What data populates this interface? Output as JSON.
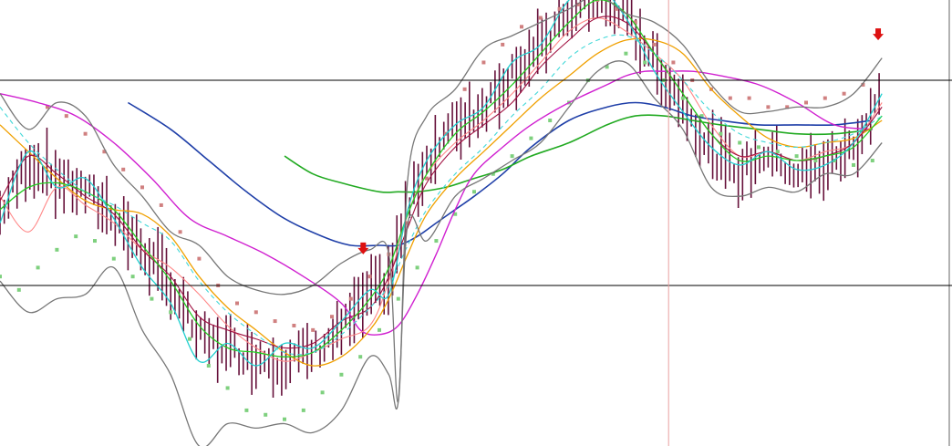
{
  "chart_data": {
    "type": "line",
    "title": "",
    "xlabel": "",
    "ylabel": "",
    "x_index_range": [
      0,
      100
    ],
    "y_range": [
      0,
      100
    ],
    "grid": false,
    "legend": "none",
    "horizontal_levels": [
      {
        "name": "upper-level",
        "y": 82,
        "color": "#000000"
      },
      {
        "name": "lower-level",
        "y": 36,
        "color": "#000000"
      }
    ],
    "vertical_markers": [
      {
        "name": "cursor-line",
        "x": 70.5,
        "color": "#e8a0a0"
      }
    ],
    "arrows": [
      {
        "name": "sell-arrow-1",
        "x": 38.3,
        "y": 44,
        "color": "#dd1111"
      },
      {
        "name": "sell-arrow-2",
        "x": 92.6,
        "y": 92,
        "color": "#dd1111"
      }
    ],
    "series": [
      {
        "color": "#1f3fa8",
        "width": 1.6,
        "x": [
          13.5,
          18,
          22,
          26,
          30,
          34,
          37,
          40,
          42,
          44,
          46,
          48,
          50,
          53,
          56,
          60,
          64,
          67,
          70,
          73,
          76,
          80,
          84,
          88,
          92
        ],
        "y": [
          77,
          71,
          64,
          57,
          51,
          47,
          45,
          45,
          45,
          47,
          50,
          53,
          56,
          61,
          67,
          73,
          76,
          77,
          76,
          74,
          73,
          72,
          72,
          72,
          73
        ]
      },
      {
        "color": "#22aa22",
        "width": 1.6,
        "x": [
          30,
          33,
          36,
          40,
          42,
          44,
          47,
          50,
          53,
          56,
          60,
          64,
          67,
          70,
          73,
          76,
          80,
          84,
          88,
          92
        ],
        "y": [
          65,
          61,
          59,
          57,
          57,
          57,
          58,
          60,
          62,
          65,
          68,
          72,
          74,
          74,
          73,
          72,
          71,
          70,
          70,
          71
        ]
      },
      {
        "color": "#d020d0",
        "width": 1.4,
        "x": [
          0,
          4,
          8,
          12,
          16,
          20,
          24,
          28,
          32,
          36,
          38,
          40,
          42,
          44,
          46,
          48,
          50,
          53,
          56,
          60,
          64,
          66,
          68,
          70,
          73,
          76,
          80,
          84,
          88,
          92
        ],
        "y": [
          79,
          77,
          74,
          68,
          60,
          51,
          47,
          43,
          38,
          32,
          26,
          25,
          27,
          34,
          43,
          53,
          61,
          67,
          72,
          77,
          81,
          83,
          84,
          84,
          84,
          83,
          81,
          77,
          72,
          71
        ]
      },
      {
        "color": "#f0a000",
        "width": 1.3,
        "x": [
          0,
          3,
          6,
          9,
          12,
          15,
          18,
          21,
          24,
          27,
          30,
          33,
          36,
          39,
          41,
          43,
          45,
          48,
          51,
          54,
          57,
          60,
          63,
          66,
          69,
          72,
          75,
          78,
          81,
          84,
          87,
          90,
          93
        ],
        "y": [
          72,
          66,
          60,
          55,
          53,
          52,
          47,
          38,
          31,
          26,
          21,
          18,
          20,
          26,
          33,
          43,
          52,
          60,
          66,
          72,
          78,
          83,
          88,
          91,
          91,
          88,
          80,
          74,
          69,
          67,
          68,
          69,
          73
        ]
      },
      {
        "color": "#ff8888",
        "width": 1.1,
        "x": [
          0,
          3,
          6,
          9,
          12,
          15,
          18,
          21,
          24,
          27,
          30,
          33,
          36,
          39,
          41,
          43,
          45,
          48,
          51,
          54,
          57,
          60,
          63,
          66,
          69,
          72,
          75,
          78,
          81,
          84,
          87,
          90,
          93
        ],
        "y": [
          56,
          48,
          58,
          54,
          50,
          44,
          40,
          34,
          27,
          22,
          19,
          21,
          24,
          27,
          37,
          52,
          61,
          68,
          73,
          79,
          86,
          93,
          96,
          93,
          88,
          82,
          72,
          65,
          66,
          64,
          66,
          68,
          77
        ]
      },
      {
        "color": "#a01040",
        "width": 1.1,
        "x": [
          0,
          3,
          6,
          9,
          12,
          15,
          18,
          21,
          24,
          27,
          30,
          33,
          36,
          39,
          41,
          43,
          45,
          48,
          51,
          54,
          57,
          60,
          63,
          66,
          69,
          72,
          75,
          78,
          81,
          84,
          87,
          90,
          93
        ],
        "y": [
          55,
          65,
          61,
          56,
          52,
          44,
          38,
          29,
          26,
          24,
          22,
          23,
          28,
          31,
          38,
          49,
          59,
          67,
          72,
          77,
          85,
          91,
          96,
          95,
          88,
          79,
          70,
          65,
          66,
          64,
          65,
          68,
          76
        ]
      },
      {
        "color": "#22cc22",
        "width": 1.3,
        "x": [
          0,
          3,
          6,
          9,
          12,
          15,
          18,
          21,
          24,
          27,
          30,
          33,
          36,
          39,
          41,
          43,
          45,
          48,
          51,
          54,
          57,
          60,
          63,
          66,
          69,
          72,
          75,
          78,
          81,
          84,
          87,
          90,
          93
        ],
        "y": [
          53,
          58,
          59,
          57,
          53,
          45,
          37,
          27,
          22,
          21,
          20,
          21,
          26,
          33,
          40,
          52,
          61,
          70,
          75,
          81,
          88,
          95,
          100,
          97,
          88,
          79,
          70,
          64,
          65,
          64,
          65,
          67,
          74
        ]
      },
      {
        "color": "#20d0d0",
        "width": 1.3,
        "x": [
          0,
          3,
          6,
          9,
          12,
          15,
          18,
          21,
          24,
          27,
          30,
          33,
          36,
          39,
          41,
          43,
          45,
          48,
          51,
          54,
          57,
          60,
          63,
          66,
          69,
          72,
          75,
          78,
          81,
          84,
          87,
          90,
          93
        ],
        "y": [
          50,
          66,
          58,
          60,
          51,
          40,
          32,
          19,
          23,
          18,
          23,
          22,
          28,
          35,
          34,
          53,
          64,
          72,
          76,
          86,
          90,
          100,
          103,
          96,
          84,
          75,
          67,
          63,
          66,
          62,
          63,
          68,
          79
        ]
      },
      {
        "color": "#40d8d8",
        "width": 1.1,
        "dash": "5,4",
        "x": [
          0,
          3,
          6,
          9,
          12,
          15,
          18,
          21,
          24,
          27,
          30,
          33,
          36,
          39,
          41,
          43,
          45,
          48,
          51,
          54,
          57,
          60,
          63,
          66,
          69,
          72,
          75,
          78,
          81,
          84,
          87,
          90,
          93
        ],
        "y": [
          76,
          68,
          62,
          57,
          54,
          50,
          46,
          37,
          30,
          25,
          21,
          21,
          25,
          31,
          36,
          45,
          53,
          61,
          67,
          74,
          80,
          87,
          91,
          92,
          88,
          82,
          75,
          70,
          68,
          67,
          68,
          70,
          74
        ]
      },
      {
        "color": "#777777",
        "width": 1.3,
        "x": [
          0,
          3,
          6,
          9,
          12,
          15,
          18,
          21,
          24,
          27,
          30,
          33,
          36,
          39,
          41,
          42,
          43,
          45,
          48,
          51,
          54,
          57,
          60,
          63,
          66,
          69,
          72,
          75,
          78,
          81,
          84,
          87,
          90,
          93
        ],
        "y": [
          79,
          71,
          77,
          74,
          63,
          56,
          48,
          45,
          38,
          35,
          34,
          36,
          41,
          44,
          43,
          10,
          60,
          74,
          80,
          89,
          92,
          95,
          98,
          101,
          97,
          95,
          90,
          81,
          75,
          75,
          76,
          76,
          79,
          87
        ]
      },
      {
        "color": "#777777",
        "width": 1.3,
        "x": [
          0,
          3,
          6,
          9,
          12,
          15,
          18,
          21,
          24,
          27,
          30,
          33,
          36,
          39,
          41,
          42,
          43,
          45,
          48,
          51,
          54,
          57,
          60,
          63,
          66,
          69,
          72,
          75,
          78,
          81,
          84,
          87,
          90,
          93
        ],
        "y": [
          37,
          30,
          33,
          34,
          40,
          26,
          16,
          0,
          5,
          4,
          5,
          3,
          8,
          20,
          16,
          10,
          50,
          46,
          56,
          60,
          64,
          68,
          76,
          84,
          86,
          78,
          71,
          58,
          56,
          58,
          57,
          61,
          61,
          68
        ]
      }
    ],
    "candles": {
      "color": "#66103a",
      "x": [
        0,
        3,
        6,
        9,
        12,
        15,
        18,
        21,
        24,
        27,
        30,
        33,
        36,
        39,
        41,
        43,
        45,
        48,
        51,
        54,
        57,
        60,
        63,
        66,
        69,
        72,
        75,
        78,
        81,
        84,
        87,
        90,
        93
      ],
      "y": [
        52,
        64,
        60,
        57,
        52,
        44,
        36,
        24,
        22,
        20,
        19,
        21,
        26,
        34,
        37,
        53,
        64,
        72,
        76,
        84,
        89,
        98,
        101,
        97,
        86,
        77,
        66,
        61,
        66,
        61,
        63,
        67,
        80
      ]
    },
    "sar_dots": [
      {
        "color": "#d08080",
        "x": [
          5,
          7,
          9,
          11,
          13,
          15,
          17,
          19,
          21,
          23,
          25,
          27,
          29,
          31,
          33,
          35,
          37,
          39,
          41,
          43,
          45,
          47,
          49,
          51,
          53,
          55,
          57,
          59,
          61,
          63,
          65,
          67,
          69,
          71,
          73,
          75,
          77,
          79,
          81,
          83,
          85,
          87,
          89,
          91
        ],
        "y": [
          76,
          74,
          70,
          66,
          62,
          58,
          54,
          48,
          42,
          36,
          32,
          30,
          28,
          27,
          26,
          29,
          33,
          38,
          43,
          50,
          60,
          70,
          80,
          86,
          90,
          94,
          96,
          98,
          99,
          100,
          98,
          95,
          90,
          86,
          82,
          80,
          78,
          78,
          76,
          76,
          77,
          78,
          79,
          81
        ]
      },
      {
        "color": "#7ed07e",
        "x": [
          0,
          2,
          4,
          6,
          8,
          10,
          12,
          14,
          16,
          18,
          20,
          22,
          24,
          26,
          28,
          30,
          32,
          34,
          36,
          38,
          40,
          42,
          44,
          46,
          48,
          50,
          52,
          54,
          56,
          58,
          60,
          62,
          64,
          66,
          68,
          70,
          72,
          74,
          76,
          78,
          80,
          82,
          84,
          86,
          88,
          90,
          92
        ],
        "y": [
          38,
          35,
          40,
          44,
          47,
          46,
          42,
          38,
          33,
          30,
          24,
          18,
          13,
          8,
          7,
          6,
          8,
          12,
          16,
          20,
          26,
          33,
          40,
          46,
          52,
          57,
          61,
          65,
          69,
          73,
          77,
          82,
          85,
          88,
          86,
          82,
          78,
          74,
          70,
          68,
          67,
          66,
          65,
          64,
          64,
          63,
          64
        ]
      }
    ]
  }
}
